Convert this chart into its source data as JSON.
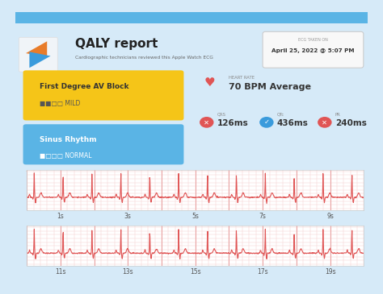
{
  "bg_color": "#d6eaf8",
  "card_color": "#ffffff",
  "header_bar_color": "#5ab4e5",
  "title": "QALY report",
  "subtitle": "Cardiographic technicians reviewed this Apple Watch ECG",
  "ecg_label": "ECG TAKEN ON",
  "ecg_date": "April 25, 2022 @ 5:07 PM",
  "yellow_box_title": "First Degree AV Block",
  "yellow_box_sub": "■■□□ MILD",
  "yellow_box_color": "#f5c518",
  "blue_box_title": "Sinus Rhythm",
  "blue_box_sub": "■□□□ NORMAL",
  "blue_box_color": "#5ab4e5",
  "heart_rate_label": "HEART RATE",
  "heart_rate_value": "70 BPM Average",
  "qrs_label": "QRS",
  "qrs_value": "126ms",
  "qtc_label": "QTc",
  "qtc_value": "436ms",
  "pr_label": "PR",
  "pr_value": "240ms",
  "ecg_color": "#e05555",
  "grid_minor_color": "#f5c8c8",
  "grid_major_color": "#e8a0a0",
  "tick_labels_1": [
    "1s",
    "3s",
    "5s",
    "7s",
    "9s"
  ],
  "tick_labels_2": [
    "11s",
    "13s",
    "15s",
    "17s",
    "19s"
  ]
}
